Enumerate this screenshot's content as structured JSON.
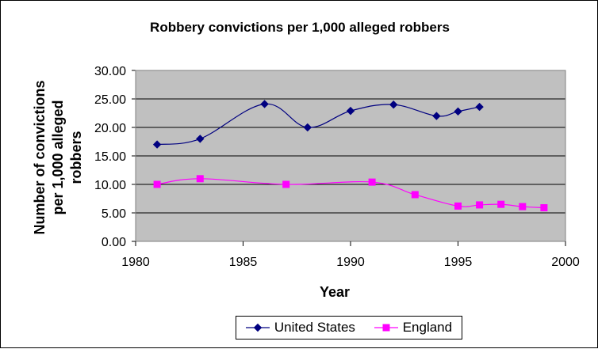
{
  "chart_data": {
    "type": "line",
    "title": "Robbery convictions per 1,000 alleged robbers",
    "xlabel": "Year",
    "ylabel": "Number of convictions per 1,000 alleged robbers",
    "ylabel_lines": [
      "Number of convictions",
      "per 1,000 alleged",
      "robbers"
    ],
    "xlim": [
      1980,
      2000
    ],
    "ylim": [
      0,
      30
    ],
    "x_ticks": [
      1980,
      1985,
      1990,
      1995,
      2000
    ],
    "x_tick_labels": [
      "1980",
      "1985",
      "1990",
      "1995",
      "2000"
    ],
    "y_ticks": [
      0,
      5,
      10,
      15,
      20,
      25,
      30
    ],
    "y_tick_labels": [
      "0.00",
      "5.00",
      "10.00",
      "15.00",
      "20.00",
      "25.00",
      "30.00"
    ],
    "grid": true,
    "legend_position": "bottom",
    "plot_background": "#c0c0c0",
    "series": [
      {
        "name": "United States",
        "color": "#000080",
        "marker": "diamond",
        "x": [
          1981,
          1983,
          1986,
          1988,
          1990,
          1992,
          1994,
          1995,
          1996
        ],
        "y": [
          17.0,
          18.0,
          24.1,
          20.0,
          22.9,
          24.0,
          22.0,
          22.8,
          23.6
        ]
      },
      {
        "name": "England",
        "color": "#ff00ff",
        "marker": "square",
        "x": [
          1981,
          1983,
          1987,
          1991,
          1993,
          1995,
          1996,
          1997,
          1998,
          1999
        ],
        "y": [
          10.0,
          11.0,
          10.0,
          10.4,
          8.2,
          6.2,
          6.4,
          6.5,
          6.1,
          5.9
        ]
      }
    ]
  }
}
